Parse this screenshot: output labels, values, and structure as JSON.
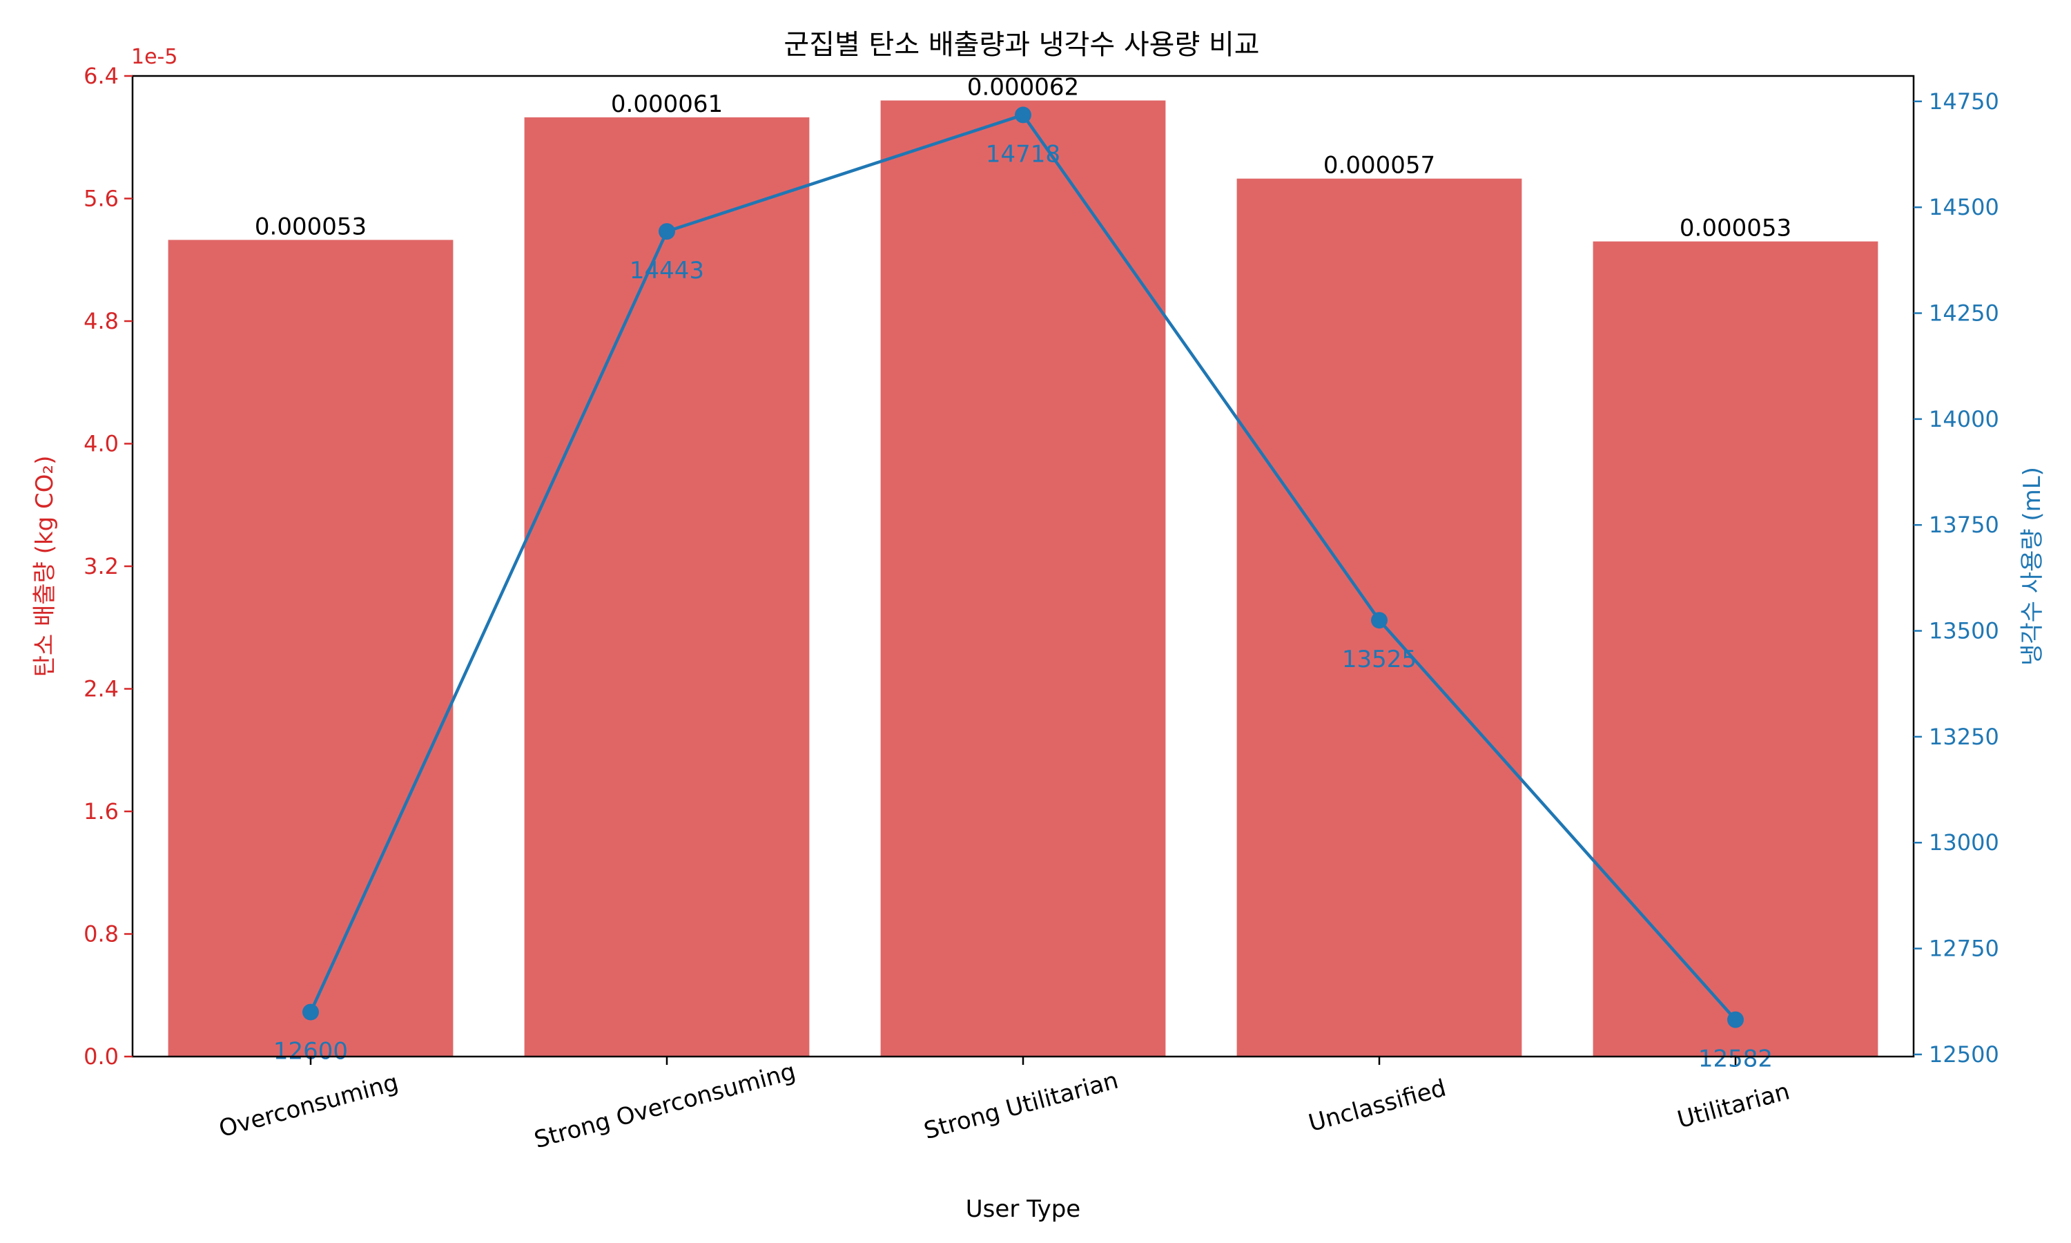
{
  "chart_data": {
    "type": "bar+line",
    "title": "군집별 탄소 배출량과 냉각수 사용량 비교",
    "xlabel": "User Type",
    "categories": [
      "Overconsuming",
      "Strong Overconsuming",
      "Strong Utilitarian",
      "Unclassified",
      "Utilitarian"
    ],
    "bars": {
      "name": "탄소 배출량",
      "ylabel": "탄소 배출량 (kg CO₂)",
      "exponent_label": "1e-5",
      "values": [
        5.33e-05,
        6.13e-05,
        6.24e-05,
        5.73e-05,
        5.32e-05
      ],
      "value_labels": [
        "0.000053",
        "0.000061",
        "0.000062",
        "0.000057",
        "0.000053"
      ],
      "ylim": [
        0,
        6.4e-05
      ],
      "ticks": [
        0,
        8e-06,
        1.6e-05,
        2.4e-05,
        3.2e-05,
        4e-05,
        4.8e-05,
        5.6e-05,
        6.4e-05
      ],
      "tick_labels": [
        "0.0",
        "0.8",
        "1.6",
        "2.4",
        "3.2",
        "4.0",
        "4.8",
        "5.6",
        "6.4"
      ],
      "color": "#e06666",
      "axis_color": "#d62728"
    },
    "line": {
      "name": "냉각수 사용량",
      "ylabel": "냉각수 사용량 (mL)",
      "values": [
        12600,
        14443,
        14718,
        13525,
        12582
      ],
      "value_labels": [
        "12600",
        "14443",
        "14718",
        "13525",
        "12582"
      ],
      "ylim": [
        12495,
        14810
      ],
      "ticks": [
        12500,
        12750,
        13000,
        13250,
        13500,
        13750,
        14000,
        14250,
        14500,
        14750
      ],
      "tick_labels": [
        "12500",
        "12750",
        "13000",
        "13250",
        "13500",
        "13750",
        "14000",
        "14250",
        "14500",
        "14750"
      ],
      "color": "#1f77b4"
    },
    "grid": false
  }
}
